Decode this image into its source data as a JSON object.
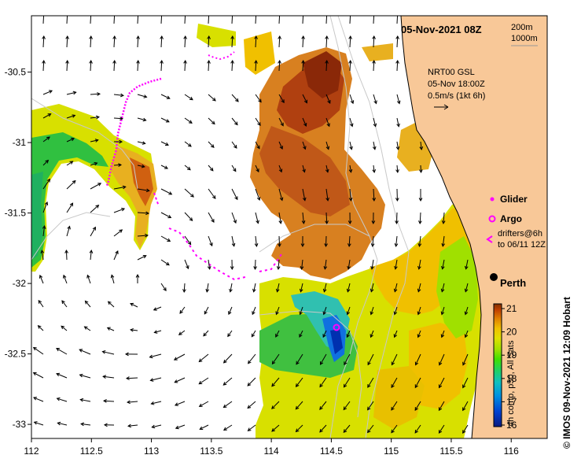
{
  "title": "05-Nov-2021 08Z",
  "depth_contours": [
    "200m",
    "1000m"
  ],
  "current_legend": {
    "product": "NRT00 GSL",
    "datetime": "05-Nov 18:00Z",
    "scale": "0.5m/s (1kt 6h)"
  },
  "legend": {
    "glider": "Glider",
    "argo": "Argo",
    "drifters_line1": "drifters@6h",
    "drifters_line2": "to 06/11 12Z"
  },
  "place": "Perth",
  "colorbar": {
    "ticks": [
      "21",
      "20",
      "19",
      "18",
      "17",
      "16"
    ],
    "label": "4h comp, p50, All Sats",
    "colors": [
      "#0a1a80",
      "#0040d0",
      "#0090e0",
      "#10c0c0",
      "#20d060",
      "#40e000",
      "#a0e000",
      "#e0e000",
      "#f0c000",
      "#e08000",
      "#c04000",
      "#803000"
    ]
  },
  "credit": "© IMOS 09-Nov-2021 12:09 Hobart",
  "axes": {
    "x_ticks": [
      "112",
      "112.5",
      "113",
      "113.5",
      "114",
      "114.5",
      "115",
      "115.5",
      "116"
    ],
    "y_ticks": [
      "-30.5",
      "-31",
      "-31.5",
      "-32",
      "-32.5",
      "-33"
    ],
    "lon_range": [
      112,
      116.3
    ],
    "lat_range": [
      -33.1,
      -30.1
    ]
  },
  "colors": {
    "land": "#f8c898",
    "drifter": "#ff00ff",
    "coast": "#000000"
  }
}
